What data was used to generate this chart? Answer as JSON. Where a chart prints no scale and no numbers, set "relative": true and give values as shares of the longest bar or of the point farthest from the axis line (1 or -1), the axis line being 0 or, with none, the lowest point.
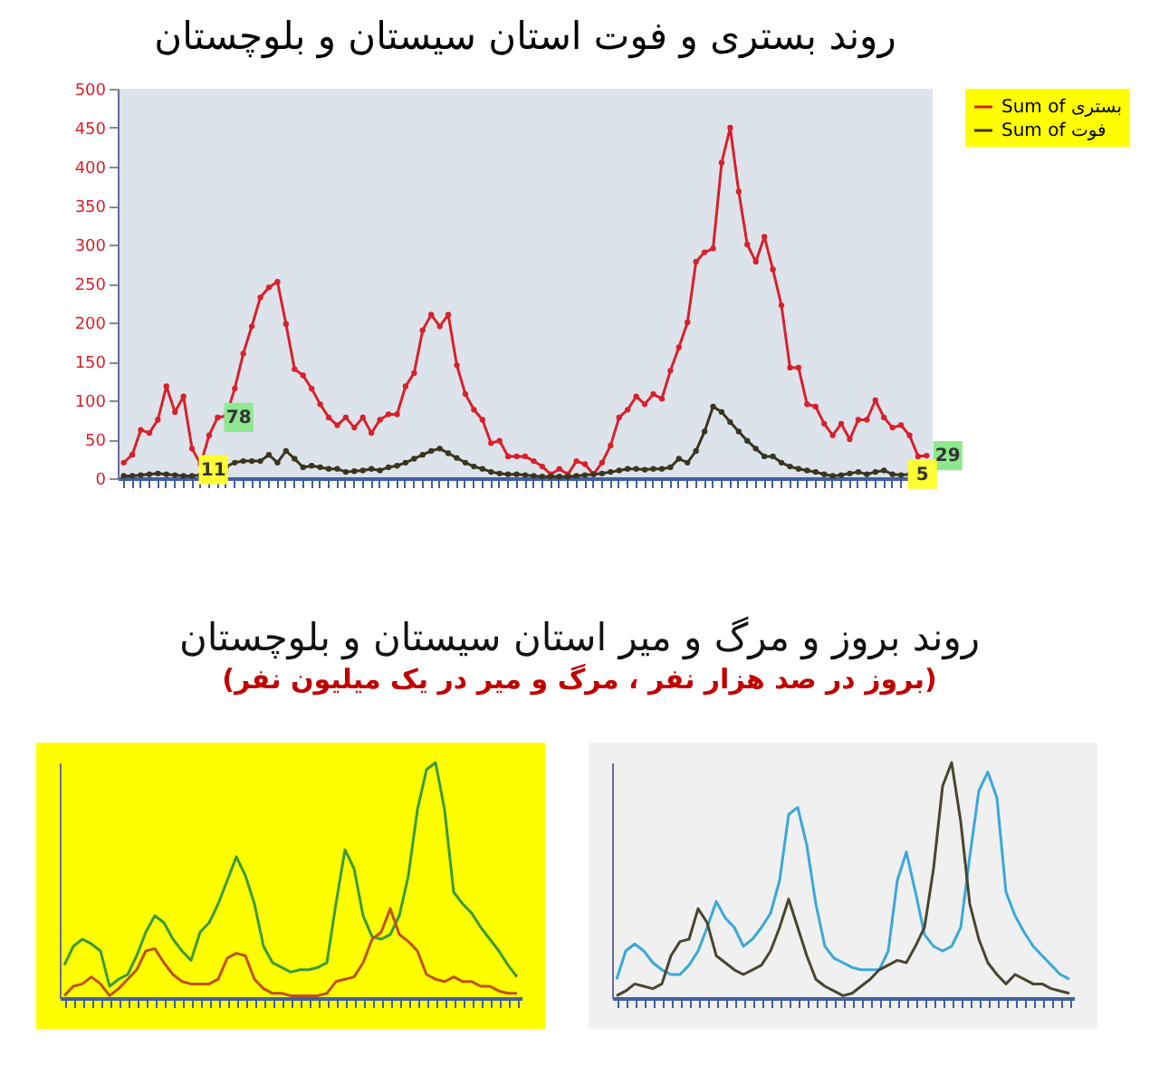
{
  "chart_data": [
    {
      "type": "line",
      "title": "روند بستری و فوت استان سیستان و بلوچستان",
      "categories": [
        null,
        null,
        null,
        null,
        null,
        null,
        null,
        null,
        null,
        null,
        null,
        null,
        null,
        null,
        null,
        null,
        null,
        null,
        null,
        null,
        null,
        null,
        null,
        null,
        null,
        null,
        null,
        null,
        null,
        null,
        null,
        null,
        null,
        null,
        null,
        null,
        null,
        null,
        null,
        null,
        null,
        null,
        null,
        null,
        null,
        null,
        null,
        null,
        null,
        null,
        null,
        null,
        null,
        null,
        null,
        null,
        null,
        null,
        null,
        null,
        null,
        null,
        null,
        null,
        null,
        null,
        null,
        null,
        null,
        null,
        null,
        null,
        null,
        null,
        null,
        null,
        null,
        null,
        null,
        null,
        null,
        null,
        null,
        null,
        null,
        null,
        null,
        null,
        null,
        null,
        null,
        null,
        null,
        null,
        null
      ],
      "ylim": [
        0,
        500
      ],
      "yticks": [
        0,
        50,
        100,
        150,
        200,
        250,
        300,
        350,
        400,
        450,
        500
      ],
      "legend": "right",
      "marker": "circle",
      "series": [
        {
          "name": "Sum of بستری",
          "color": "#d8202c",
          "values": [
            20,
            30,
            62,
            58,
            75,
            118,
            85,
            105,
            38,
            18,
            55,
            78,
            80,
            115,
            160,
            195,
            232,
            245,
            252,
            198,
            140,
            132,
            115,
            95,
            78,
            68,
            78,
            65,
            78,
            58,
            75,
            82,
            82,
            118,
            135,
            190,
            210,
            195,
            210,
            145,
            108,
            88,
            75,
            45,
            48,
            28,
            28,
            28,
            22,
            15,
            5,
            12,
            5,
            22,
            18,
            5,
            20,
            42,
            78,
            88,
            105,
            95,
            108,
            102,
            138,
            168,
            200,
            278,
            290,
            295,
            405,
            450,
            368,
            300,
            278,
            310,
            268,
            222,
            142,
            142,
            95,
            92,
            70,
            55,
            70,
            50,
            75,
            75,
            100,
            78,
            65,
            68,
            55,
            28,
            29
          ],
          "value_labels": [
            null,
            null,
            null,
            null,
            null,
            null,
            null,
            null,
            null,
            null,
            null,
            "78",
            null,
            null,
            null,
            null,
            null,
            null,
            null,
            null,
            null,
            null,
            null,
            null,
            null,
            null,
            null,
            null,
            null,
            null,
            null,
            null,
            null,
            null,
            null,
            null,
            null,
            null,
            null,
            null,
            null,
            null,
            null,
            null,
            null,
            null,
            null,
            null,
            null,
            null,
            null,
            null,
            null,
            null,
            null,
            null,
            null,
            null,
            null,
            null,
            null,
            null,
            null,
            null,
            null,
            null,
            null,
            null,
            null,
            null,
            null,
            null,
            null,
            null,
            null,
            null,
            null,
            null,
            null,
            null,
            null,
            null,
            null,
            null,
            null,
            null,
            null,
            null,
            null,
            null,
            null,
            null,
            null,
            null,
            "29"
          ]
        },
        {
          "name": "Sum of فوت",
          "color": "#3a3520",
          "values": [
            3,
            3,
            4,
            5,
            6,
            5,
            4,
            3,
            3,
            4,
            6,
            11,
            15,
            20,
            22,
            22,
            22,
            30,
            20,
            35,
            25,
            14,
            16,
            14,
            12,
            12,
            8,
            9,
            10,
            12,
            10,
            14,
            16,
            20,
            25,
            30,
            35,
            38,
            32,
            26,
            20,
            15,
            12,
            8,
            6,
            5,
            5,
            4,
            3,
            2,
            2,
            2,
            2,
            3,
            4,
            5,
            6,
            8,
            10,
            12,
            12,
            11,
            12,
            12,
            14,
            25,
            20,
            35,
            60,
            92,
            85,
            72,
            60,
            48,
            38,
            28,
            28,
            20,
            15,
            12,
            10,
            8,
            5,
            3,
            4,
            6,
            8,
            5,
            8,
            10,
            5,
            4,
            5,
            4,
            5
          ],
          "value_labels": [
            null,
            null,
            null,
            null,
            null,
            null,
            null,
            null,
            null,
            null,
            null,
            "11",
            null,
            null,
            null,
            null,
            null,
            null,
            null,
            null,
            null,
            null,
            null,
            null,
            null,
            null,
            null,
            null,
            null,
            null,
            null,
            null,
            null,
            null,
            null,
            null,
            null,
            null,
            null,
            null,
            null,
            null,
            null,
            null,
            null,
            null,
            null,
            null,
            null,
            null,
            null,
            null,
            null,
            null,
            null,
            null,
            null,
            null,
            null,
            null,
            null,
            null,
            null,
            null,
            null,
            null,
            null,
            null,
            null,
            null,
            null,
            null,
            null,
            null,
            null,
            null,
            null,
            null,
            null,
            null,
            null,
            null,
            null,
            null,
            null,
            null,
            null,
            null,
            null,
            null,
            null,
            null,
            null,
            null,
            "5"
          ]
        }
      ]
    },
    {
      "type": "line",
      "title": "روند بروز و مرگ و میر استان سیستان و بلوچستان",
      "subtitle": "(بروز در صد هزار نفر ، مرگ و میر در یک میلیون نفر)",
      "relative": true,
      "categories": [
        null,
        null,
        null,
        null,
        null,
        null,
        null,
        null,
        null,
        null,
        null,
        null,
        null,
        null,
        null,
        null,
        null,
        null,
        null,
        null,
        null,
        null,
        null,
        null,
        null,
        null,
        null,
        null,
        null,
        null,
        null,
        null,
        null,
        null,
        null,
        null,
        null,
        null,
        null,
        null,
        null,
        null,
        null,
        null,
        null,
        null,
        null,
        null,
        null,
        null,
        null
      ],
      "series": [
        {
          "color": "#3a9a3a",
          "values": [
            0.14,
            0.22,
            0.25,
            0.23,
            0.2,
            0.05,
            0.08,
            0.1,
            0.18,
            0.28,
            0.35,
            0.32,
            0.25,
            0.2,
            0.16,
            0.28,
            0.32,
            0.4,
            0.5,
            0.6,
            0.52,
            0.4,
            0.22,
            0.15,
            0.13,
            0.11,
            0.12,
            0.12,
            0.13,
            0.15,
            0.4,
            0.63,
            0.55,
            0.35,
            0.26,
            0.25,
            0.27,
            0.35,
            0.52,
            0.8,
            0.97,
            1,
            0.8,
            0.45,
            0.4,
            0.36,
            0.3,
            0.25,
            0.2,
            0.14,
            0.09
          ]
        },
        {
          "color": "#c0501a",
          "values": [
            0.01,
            0.05,
            0.06,
            0.09,
            0.06,
            0.01,
            0.04,
            0.08,
            0.12,
            0.2,
            0.21,
            0.15,
            0.1,
            0.07,
            0.06,
            0.06,
            0.06,
            0.08,
            0.17,
            0.19,
            0.18,
            0.08,
            0.04,
            0.02,
            0.02,
            0.01,
            0.01,
            0.01,
            0.01,
            0.02,
            0.07,
            0.08,
            0.09,
            0.15,
            0.25,
            0.28,
            0.38,
            0.27,
            0.24,
            0.2,
            0.1,
            0.08,
            0.07,
            0.09,
            0.07,
            0.07,
            0.05,
            0.05,
            0.03,
            0.02,
            0.02
          ]
        }
      ]
    },
    {
      "type": "line",
      "relative": true,
      "categories": [
        null,
        null,
        null,
        null,
        null,
        null,
        null,
        null,
        null,
        null,
        null,
        null,
        null,
        null,
        null,
        null,
        null,
        null,
        null,
        null,
        null,
        null,
        null,
        null,
        null,
        null,
        null,
        null,
        null,
        null,
        null,
        null,
        null,
        null,
        null,
        null,
        null,
        null,
        null,
        null,
        null,
        null,
        null,
        null,
        null,
        null,
        null,
        null,
        null,
        null,
        null
      ],
      "series": [
        {
          "color": "#3aa8d8",
          "values": [
            0.08,
            0.2,
            0.23,
            0.2,
            0.15,
            0.12,
            0.1,
            0.1,
            0.14,
            0.2,
            0.3,
            0.41,
            0.34,
            0.3,
            0.22,
            0.25,
            0.3,
            0.36,
            0.5,
            0.78,
            0.81,
            0.65,
            0.4,
            0.22,
            0.17,
            0.15,
            0.13,
            0.12,
            0.12,
            0.12,
            0.2,
            0.5,
            0.62,
            0.45,
            0.27,
            0.22,
            0.2,
            0.22,
            0.3,
            0.6,
            0.88,
            0.96,
            0.85,
            0.45,
            0.35,
            0.28,
            0.22,
            0.18,
            0.14,
            0.1,
            0.08
          ]
        },
        {
          "color": "#4a4530",
          "values": [
            0.01,
            0.03,
            0.06,
            0.05,
            0.04,
            0.06,
            0.18,
            0.24,
            0.25,
            0.38,
            0.32,
            0.18,
            0.15,
            0.12,
            0.1,
            0.12,
            0.14,
            0.2,
            0.3,
            0.42,
            0.3,
            0.18,
            0.08,
            0.05,
            0.03,
            0.01,
            0.02,
            0.05,
            0.08,
            0.12,
            0.14,
            0.16,
            0.15,
            0.22,
            0.3,
            0.55,
            0.9,
            1,
            0.75,
            0.4,
            0.25,
            0.15,
            0.1,
            0.06,
            0.1,
            0.08,
            0.06,
            0.06,
            0.04,
            0.03,
            0.02
          ]
        }
      ]
    }
  ]
}
